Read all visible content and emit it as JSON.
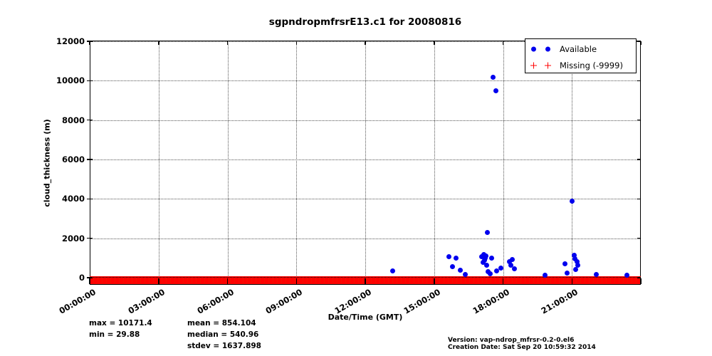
{
  "window": {
    "background": "#ffffff"
  },
  "title": "sgpndropmfrsrE13.c1 for 20080816",
  "axes": {
    "ylabel": "cloud_thickness (m)",
    "xlabel": "Date/Time (GMT)"
  },
  "legend": {
    "available_label": "Available",
    "missing_label": "Missing (-9999)"
  },
  "stats_display": {
    "max": "max = 10171.4",
    "min": "min = 29.88",
    "mean": "mean = 854.104",
    "median": "median = 540.96",
    "stdev": "stdev = 1637.898"
  },
  "footer": {
    "version": "Version: vap-ndrop_mfrsr-0.2-0.el6",
    "creation_date": "Creation Date: Sat Sep 20 10:59:32 2014"
  },
  "colors": {
    "available": "#0000ee",
    "missing": "#ff0000",
    "grid": "#555555",
    "frame": "#000000"
  },
  "chart_data": {
    "type": "scatter",
    "title": "sgpndropmfrsrE13.c1 for 20080816",
    "xlabel": "Date/Time (GMT)",
    "ylabel": "cloud_thickness (m)",
    "xlim_hours": [
      0,
      24
    ],
    "ylim": [
      0,
      12000
    ],
    "grid": true,
    "legend_position": "upper right",
    "xticks": [
      {
        "hour": 0,
        "label": "00:00:00"
      },
      {
        "hour": 3,
        "label": "03:00:00"
      },
      {
        "hour": 6,
        "label": "06:00:00"
      },
      {
        "hour": 9,
        "label": "09:00:00"
      },
      {
        "hour": 12,
        "label": "12:00:00"
      },
      {
        "hour": 15,
        "label": "15:00:00"
      },
      {
        "hour": 18,
        "label": "18:00:00"
      },
      {
        "hour": 21,
        "label": "21:00:00"
      }
    ],
    "tick_mark_hours": [
      0,
      3,
      6,
      9,
      12,
      15,
      18,
      21,
      24
    ],
    "yticks": [
      {
        "value": 0,
        "label": "0"
      },
      {
        "value": 2000,
        "label": "2000"
      },
      {
        "value": 4000,
        "label": "4000"
      },
      {
        "value": 6000,
        "label": "6000"
      },
      {
        "value": 8000,
        "label": "8000"
      },
      {
        "value": 10000,
        "label": "10000"
      },
      {
        "value": 12000,
        "label": "12000"
      }
    ],
    "series": [
      {
        "name": "Available",
        "marker": "circle",
        "color": "#0000ee",
        "points_hour_value": [
          [
            13.2,
            350
          ],
          [
            15.65,
            1080
          ],
          [
            15.8,
            560
          ],
          [
            15.95,
            1010
          ],
          [
            16.15,
            370
          ],
          [
            16.35,
            170
          ],
          [
            17.08,
            1060
          ],
          [
            17.13,
            780
          ],
          [
            17.17,
            1160
          ],
          [
            17.2,
            890
          ],
          [
            17.22,
            1000
          ],
          [
            17.27,
            1120
          ],
          [
            17.3,
            640
          ],
          [
            17.33,
            2280
          ],
          [
            17.35,
            300
          ],
          [
            17.45,
            200
          ],
          [
            17.5,
            980
          ],
          [
            17.58,
            10171.4
          ],
          [
            17.68,
            9500
          ],
          [
            17.72,
            345
          ],
          [
            17.9,
            490
          ],
          [
            18.28,
            820
          ],
          [
            18.35,
            640
          ],
          [
            18.4,
            930
          ],
          [
            18.5,
            460
          ],
          [
            19.82,
            130
          ],
          [
            20.7,
            700
          ],
          [
            20.78,
            250
          ],
          [
            21.02,
            3870
          ],
          [
            21.1,
            1150
          ],
          [
            21.12,
            950
          ],
          [
            21.15,
            400
          ],
          [
            21.22,
            820
          ],
          [
            21.25,
            650
          ],
          [
            22.05,
            165
          ],
          [
            23.4,
            130
          ]
        ]
      },
      {
        "name": "Missing (-9999)",
        "marker": "plus",
        "color": "#ff0000",
        "note": "-9999 flagged samples for the whole day, clipped to the bottom of the axis; renders as a solid red band at y=0",
        "band_hours": [
          0,
          24
        ],
        "band_value": -9999
      }
    ],
    "stats": {
      "max": 10171.4,
      "min": 29.88,
      "mean": 854.104,
      "median": 540.96,
      "stdev": 1637.898
    }
  }
}
